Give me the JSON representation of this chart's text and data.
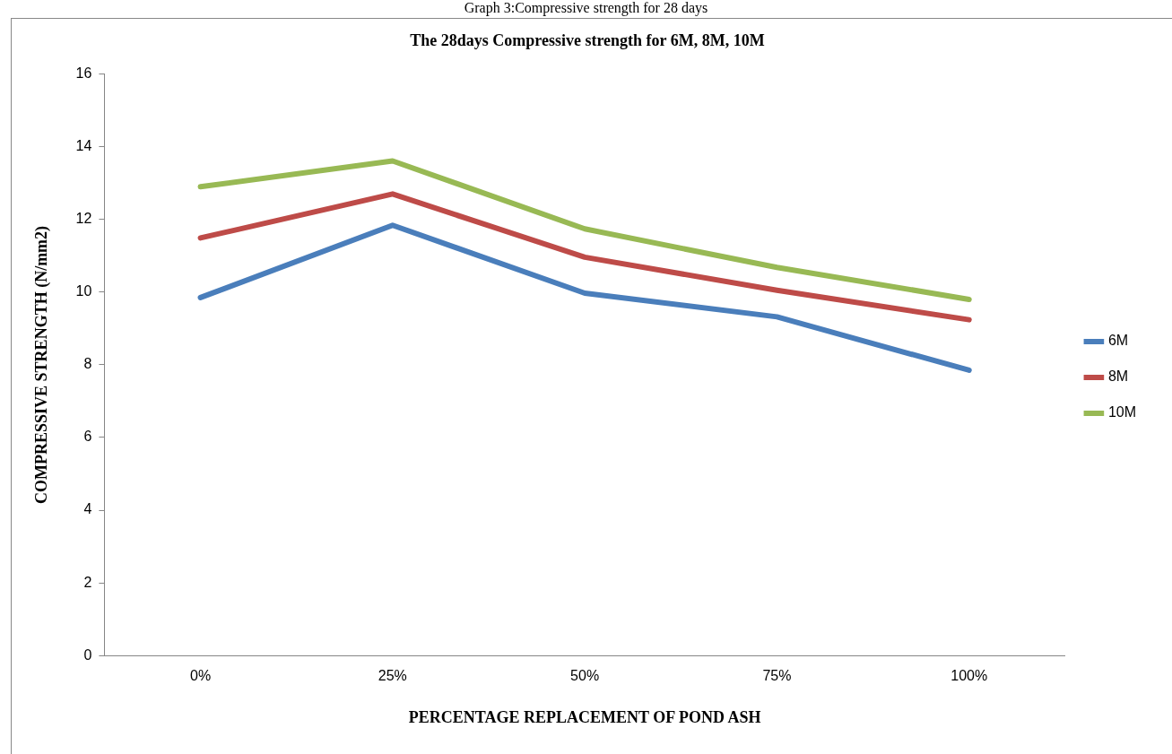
{
  "chart_data": {
    "type": "line",
    "title": "The 28days Compressive strength for 6M, 8M, 10M",
    "xlabel": "PERCENTAGE REPLACEMENT OF POND ASH",
    "ylabel": "COMPRESSIVE STRENGTH (N/mm2)",
    "annotations": [
      "Graph 3:Compressive strength for 28 days"
    ],
    "categories": [
      "0%",
      "25%",
      "50%",
      "75%",
      "100%"
    ],
    "series": [
      {
        "name": "6M",
        "color": "#4a7ebb",
        "values": [
          9.85,
          11.84,
          9.97,
          9.32,
          7.85
        ]
      },
      {
        "name": "8M",
        "color": "#be4b48",
        "values": [
          11.49,
          12.7,
          10.96,
          10.05,
          9.24
        ]
      },
      {
        "name": "10M",
        "color": "#98b954",
        "values": [
          12.9,
          13.61,
          11.74,
          10.68,
          9.8
        ]
      }
    ],
    "ylim": [
      0,
      16
    ],
    "yticks": [
      0,
      2,
      4,
      6,
      8,
      10,
      12,
      14,
      16
    ],
    "grid": false,
    "legend": "right",
    "marker": "none",
    "line_style": "solid"
  }
}
